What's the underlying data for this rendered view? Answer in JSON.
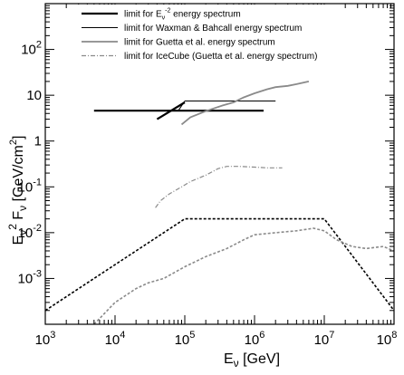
{
  "chart_data": {
    "type": "line",
    "x_scale": "log",
    "y_scale": "log",
    "xlim": [
      1000,
      100000000
    ],
    "ylim": [
      0.0001,
      1000
    ],
    "x_ticks": [
      {
        "value": 1000,
        "base": "10",
        "exp": "3"
      },
      {
        "value": 10000,
        "base": "10",
        "exp": "4"
      },
      {
        "value": 100000,
        "base": "10",
        "exp": "5"
      },
      {
        "value": 1000000,
        "base": "10",
        "exp": "6"
      },
      {
        "value": 10000000,
        "base": "10",
        "exp": "7"
      },
      {
        "value": 100000000,
        "base": "10",
        "exp": "8"
      }
    ],
    "y_ticks": [
      {
        "value": 0.001,
        "base": "10",
        "exp": "-3"
      },
      {
        "value": 0.01,
        "base": "10",
        "exp": "-2"
      },
      {
        "value": 0.1,
        "base": "10",
        "exp": "-1"
      },
      {
        "value": 1,
        "base": "1",
        "exp": ""
      },
      {
        "value": 10,
        "base": "10",
        "exp": ""
      },
      {
        "value": 100,
        "base": "10",
        "exp": "2"
      }
    ],
    "xlabel": {
      "main": "E",
      "sub": "ν",
      "rest": " [GeV]"
    },
    "ylabel": {
      "main": "E",
      "sub": "ν",
      "sup": "2",
      "mid": " F",
      "sub2": "ν",
      "rest": " [GeV/cm",
      "sup2": "2",
      "end": "]"
    },
    "legend_position": "top-left",
    "series": [
      {
        "name": "limit for E_ν^-2 energy spectrum",
        "legend": {
          "before": "limit for E",
          "sub": "ν",
          "sup": "-2",
          "after": " energy spectrum"
        },
        "color": "#000000",
        "width": 2.2,
        "dash": "",
        "segments": [
          [
            [
              5000,
              4.6
            ],
            [
              1350000,
              4.6
            ]
          ],
          [
            [
              40000,
              3.0
            ],
            [
              100000,
              7.0
            ]
          ]
        ]
      },
      {
        "name": "limit for Waxman & Bahcall energy spectrum",
        "legend": {
          "before": "limit for Waxman & Bahcall energy spectrum",
          "sub": "",
          "sup": "",
          "after": ""
        },
        "color": "#000000",
        "width": 1.1,
        "dash": "",
        "segments": [
          [
            [
              100000,
              7.5
            ],
            [
              2000000,
              7.5
            ]
          ],
          [
            [
              80000,
              4.5
            ],
            [
              100000,
              7.5
            ]
          ]
        ]
      },
      {
        "name": "limit for Guetta et al. energy spectrum",
        "legend": {
          "before": "limit for Guetta et al. energy spectrum",
          "sub": "",
          "sup": "",
          "after": ""
        },
        "color": "#8a8a8a",
        "width": 1.8,
        "dash": "",
        "segments": [
          [
            [
              90000,
              2.3
            ],
            [
              120000,
              3.3
            ],
            [
              200000,
              4.5
            ],
            [
              350000,
              6.0
            ],
            [
              500000,
              7.0
            ],
            [
              700000,
              9.0
            ],
            [
              1000000,
              11.0
            ],
            [
              1500000,
              13.5
            ],
            [
              2000000,
              15.0
            ],
            [
              3000000,
              16.0
            ],
            [
              4000000,
              17.5
            ],
            [
              6000000,
              20.0
            ]
          ]
        ]
      },
      {
        "name": "limit for IceCube (Guetta et al. energy spectrum)",
        "legend": {
          "before": "limit for IceCube (Guetta et al. energy spectrum)",
          "sub": "",
          "sup": "",
          "after": ""
        },
        "color": "#8a8a8a",
        "width": 1.2,
        "dash": "5,2,1,2",
        "segments": [
          [
            [
              38000,
              0.035
            ],
            [
              45000,
              0.05
            ],
            [
              60000,
              0.07
            ],
            [
              90000,
              0.1
            ],
            [
              120000,
              0.13
            ],
            [
              200000,
              0.18
            ],
            [
              300000,
              0.25
            ],
            [
              400000,
              0.28
            ],
            [
              600000,
              0.28
            ],
            [
              1000000,
              0.27
            ],
            [
              1500000,
              0.26
            ],
            [
              2500000,
              0.26
            ]
          ]
        ]
      },
      {
        "name": "",
        "color": "#000000",
        "width": 1.6,
        "dash": "3,2",
        "segments": [
          [
            [
              1000,
              0.0002
            ],
            [
              100000,
              0.02
            ],
            [
              10000000,
              0.02
            ],
            [
              100000000,
              0.0002
            ]
          ]
        ]
      },
      {
        "name": "",
        "color": "#8a8a8a",
        "width": 1.6,
        "dash": "3,2",
        "segments": [
          [
            [
              5000,
              0.0001
            ],
            [
              10000,
              0.0003
            ],
            [
              20000,
              0.0006
            ],
            [
              30000,
              0.0008
            ],
            [
              50000,
              0.001
            ],
            [
              100000,
              0.0018
            ],
            [
              200000,
              0.003
            ],
            [
              400000,
              0.0045
            ],
            [
              700000,
              0.007
            ],
            [
              1000000,
              0.009
            ],
            [
              2000000,
              0.01
            ],
            [
              4000000,
              0.011
            ],
            [
              7000000,
              0.0125
            ],
            [
              10000000,
              0.011
            ],
            [
              15000000,
              0.007
            ],
            [
              25000000,
              0.005
            ],
            [
              40000000,
              0.0045
            ],
            [
              70000000,
              0.005
            ],
            [
              100000000,
              0.004
            ]
          ]
        ]
      }
    ]
  }
}
